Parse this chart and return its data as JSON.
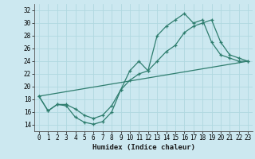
{
  "xlabel": "Humidex (Indice chaleur)",
  "bg_color": "#cce8f0",
  "grid_color": "#b0d8e0",
  "line_color": "#2e7d6e",
  "xlim": [
    -0.5,
    23.5
  ],
  "ylim": [
    13,
    33
  ],
  "xticks": [
    0,
    1,
    2,
    3,
    4,
    5,
    6,
    7,
    8,
    9,
    10,
    11,
    12,
    13,
    14,
    15,
    16,
    17,
    18,
    19,
    20,
    21,
    22,
    23
  ],
  "yticks": [
    14,
    16,
    18,
    20,
    22,
    24,
    26,
    28,
    30,
    32
  ],
  "line1_x": [
    0,
    1,
    2,
    3,
    4,
    5,
    6,
    7,
    8,
    9,
    10,
    11,
    12,
    13,
    14,
    15,
    16,
    17,
    18,
    19,
    20,
    21,
    22,
    23
  ],
  "line1_y": [
    18.5,
    16.2,
    17.2,
    17.0,
    15.2,
    14.4,
    14.1,
    14.5,
    16.0,
    19.5,
    22.5,
    24.0,
    22.5,
    28.0,
    29.5,
    30.5,
    31.5,
    30.0,
    30.5,
    27.0,
    25.0,
    24.5,
    24.0,
    24.0
  ],
  "line2_x": [
    0,
    1,
    2,
    3,
    4,
    5,
    6,
    7,
    8,
    9,
    10,
    11,
    12,
    13,
    14,
    15,
    16,
    17,
    18,
    19,
    20,
    21,
    22,
    23
  ],
  "line2_y": [
    18.5,
    16.2,
    17.2,
    17.2,
    16.5,
    15.5,
    15.0,
    15.5,
    17.0,
    19.5,
    21.0,
    22.0,
    22.5,
    24.0,
    25.5,
    26.5,
    28.5,
    29.5,
    30.0,
    30.5,
    27.0,
    25.0,
    24.5,
    24.0
  ],
  "line3_x": [
    0,
    23
  ],
  "line3_y": [
    18.5,
    24.0
  ]
}
